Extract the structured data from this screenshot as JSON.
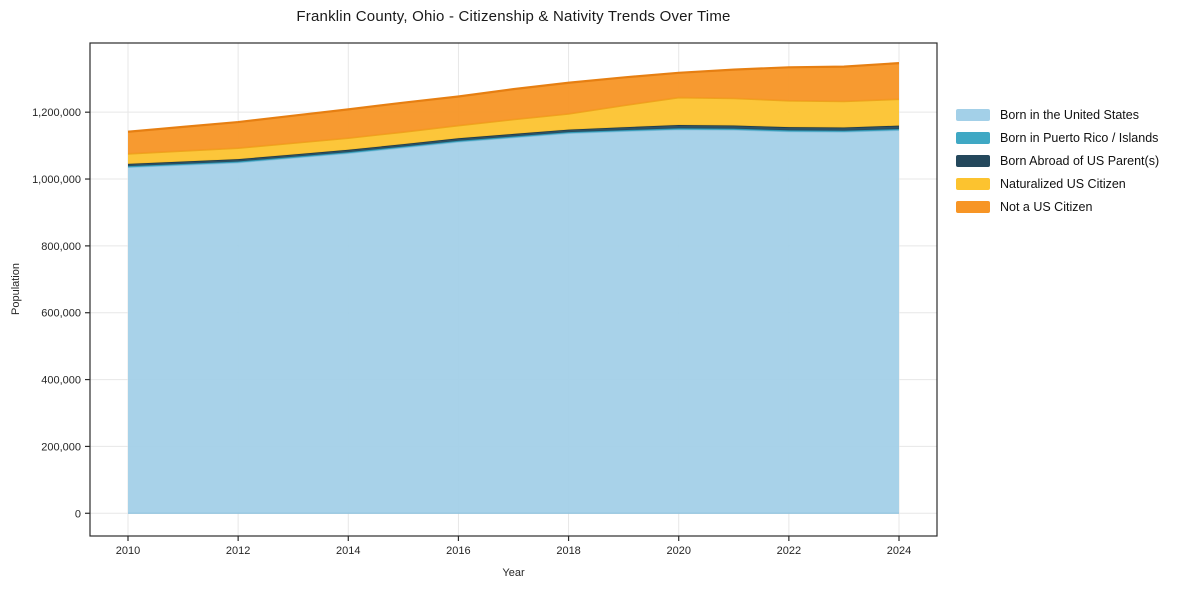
{
  "chart_data": {
    "type": "area",
    "stacked": true,
    "title": "Franklin County, Ohio - Citizenship & Nativity Trends Over Time",
    "xlabel": "Year",
    "ylabel": "Population",
    "x": [
      2010,
      2011,
      2012,
      2013,
      2014,
      2015,
      2016,
      2017,
      2018,
      2019,
      2020,
      2021,
      2022,
      2023,
      2024
    ],
    "x_ticks": {
      "values": [
        2010,
        2012,
        2014,
        2016,
        2018,
        2020,
        2022,
        2024
      ],
      "labels": [
        "2010",
        "2012",
        "2014",
        "2016",
        "2018",
        "2020",
        "2022",
        "2024"
      ]
    },
    "y_ticks": {
      "values": [
        0,
        200000,
        400000,
        600000,
        800000,
        1000000,
        1200000
      ],
      "labels": [
        "0",
        "200,000",
        "400,000",
        "600,000",
        "800,000",
        "1,000,000",
        "1,200,000"
      ]
    },
    "xlim": [
      2009.31,
      2024.69
    ],
    "ylim": [
      -68000,
      1407000
    ],
    "grid": true,
    "grid_color": "#e7e7e7",
    "axis_color": "#2b2b2b",
    "legend_position": "right",
    "series": [
      {
        "name": "Born in the United States",
        "color": "#a3d0e8",
        "edge": "#86bedb",
        "values": [
          1035000,
          1042000,
          1049000,
          1063000,
          1077000,
          1094000,
          1111000,
          1124000,
          1137000,
          1143000,
          1148000,
          1147000,
          1142000,
          1141000,
          1146000
        ]
      },
      {
        "name": "Born in Puerto Rico / Islands",
        "color": "#3fa8c4",
        "edge": "#2e92ad",
        "values": [
          3500,
          3500,
          3500,
          3500,
          3500,
          3500,
          3500,
          3500,
          3500,
          3500,
          3800,
          3800,
          3800,
          3800,
          3800
        ]
      },
      {
        "name": "Born Abroad of US Parent(s)",
        "color": "#24485c",
        "edge": "#1a3747",
        "values": [
          7000,
          7000,
          7000,
          7000,
          7000,
          7000,
          7500,
          7500,
          7500,
          8500,
          10000,
          9500,
          9500,
          9500,
          10000
        ]
      },
      {
        "name": "Naturalized US Citizen",
        "color": "#fcc32f",
        "edge": "#eda61c",
        "values": [
          30000,
          31500,
          33000,
          34000,
          35000,
          36000,
          38000,
          43000,
          47000,
          65000,
          82000,
          81000,
          79000,
          78000,
          79000
        ]
      },
      {
        "name": "Not a US Citizen",
        "color": "#f79525",
        "edge": "#e67f12",
        "values": [
          66000,
          72000,
          78000,
          82000,
          86000,
          88000,
          87000,
          91000,
          93000,
          84000,
          74000,
          86000,
          100000,
          104000,
          108000
        ]
      }
    ]
  }
}
